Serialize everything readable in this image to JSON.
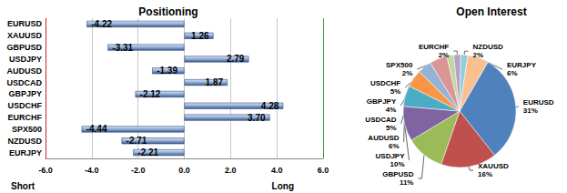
{
  "chart_data": [
    {
      "type": "bar",
      "title": "Positioning",
      "orientation": "horizontal",
      "categories": [
        "EURUSD",
        "XAUUSD",
        "GBPUSD",
        "USDJPY",
        "AUDUSD",
        "USDCAD",
        "GBPJPY",
        "USDCHF",
        "EURCHF",
        "SPX500",
        "NZDUSD",
        "EURJPY"
      ],
      "values": [
        -4.22,
        1.26,
        -3.31,
        2.79,
        -1.39,
        1.87,
        -2.12,
        4.28,
        3.7,
        -4.44,
        -2.71,
        -2.21
      ],
      "value_labels": [
        "-4.22",
        "1.26",
        "-3.31",
        "2.79",
        "-1.39",
        "1.87",
        "-2.12",
        "4.28",
        "3.70",
        "-4.44",
        "-2.71",
        "-2.21"
      ],
      "data_labels": true,
      "color": "#8eaad6",
      "xlim": [
        -6,
        6
      ],
      "xticks": [
        {
          "value": -6,
          "label": "-6.0"
        },
        {
          "value": -4,
          "label": "-4.0"
        },
        {
          "value": -2,
          "label": "-2.0"
        },
        {
          "value": 0,
          "label": "0.0"
        },
        {
          "value": 2,
          "label": "2.0"
        },
        {
          "value": 4,
          "label": "4.0"
        },
        {
          "value": 6,
          "label": "6.0"
        }
      ],
      "grid": true,
      "annotations": [
        "Short",
        "Long"
      ]
    },
    {
      "type": "pie",
      "title": "Open Interest",
      "categories": [
        "EURUSD",
        "XAUUSD",
        "GBPUSD",
        "USDJPY",
        "AUDUSD",
        "USDCAD",
        "GBPJPY",
        "USDCHF",
        "SPX500",
        "EURCHF",
        "NZDUSD",
        "EURJPY"
      ],
      "values": [
        31,
        16,
        11,
        10,
        6,
        5,
        4,
        5,
        2,
        2,
        2,
        6
      ],
      "value_labels": [
        "31%",
        "16%",
        "11%",
        "10%",
        "6%",
        "5%",
        "4%",
        "5%",
        "2%",
        "2%",
        "2%",
        "6%"
      ],
      "data_labels": true,
      "colors": [
        "#4f81bd",
        "#c0504d",
        "#9bbb59",
        "#8064a2",
        "#4bacc6",
        "#f79646",
        "#95b3d7",
        "#d99694",
        "#c3d69b",
        "#b3a2c7",
        "#93cddd",
        "#fac090"
      ]
    }
  ]
}
